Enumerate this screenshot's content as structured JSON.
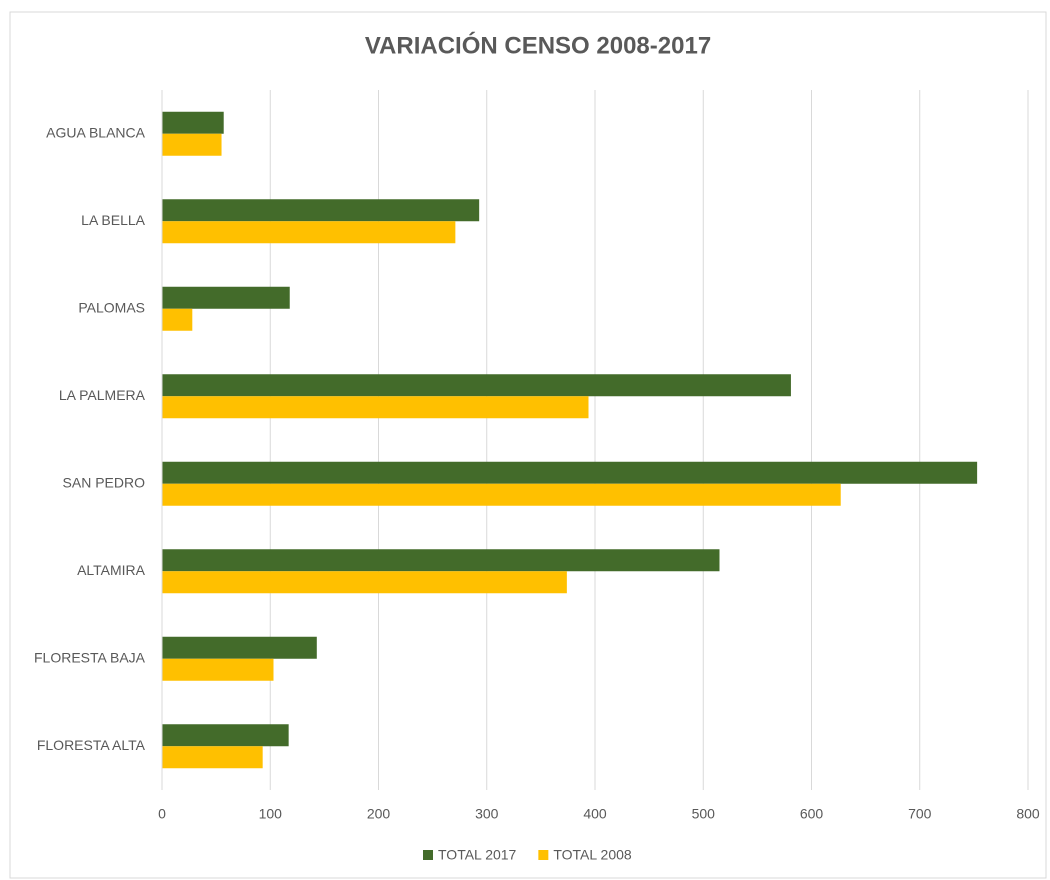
{
  "chart_data": {
    "type": "hbar",
    "title": "VARIACIÓN CENSO 2008-2017",
    "categories": [
      "AGUA BLANCA",
      "LA BELLA",
      "PALOMAS",
      "LA PALMERA",
      "SAN PEDRO",
      "ALTAMIRA",
      "FLORESTA BAJA",
      "FLORESTA ALTA"
    ],
    "series": [
      {
        "name": "TOTAL 2017",
        "color": "#436b2a",
        "values": [
          57,
          293,
          118,
          581,
          753,
          515,
          143,
          117
        ]
      },
      {
        "name": "TOTAL 2008",
        "color": "#ffc000",
        "values": [
          55,
          271,
          28,
          394,
          627,
          374,
          103,
          93
        ]
      }
    ],
    "xlim": [
      0,
      800
    ],
    "xticks": [
      0,
      100,
      200,
      300,
      400,
      500,
      600,
      700,
      800
    ],
    "grid": true,
    "legend": "bottom"
  }
}
